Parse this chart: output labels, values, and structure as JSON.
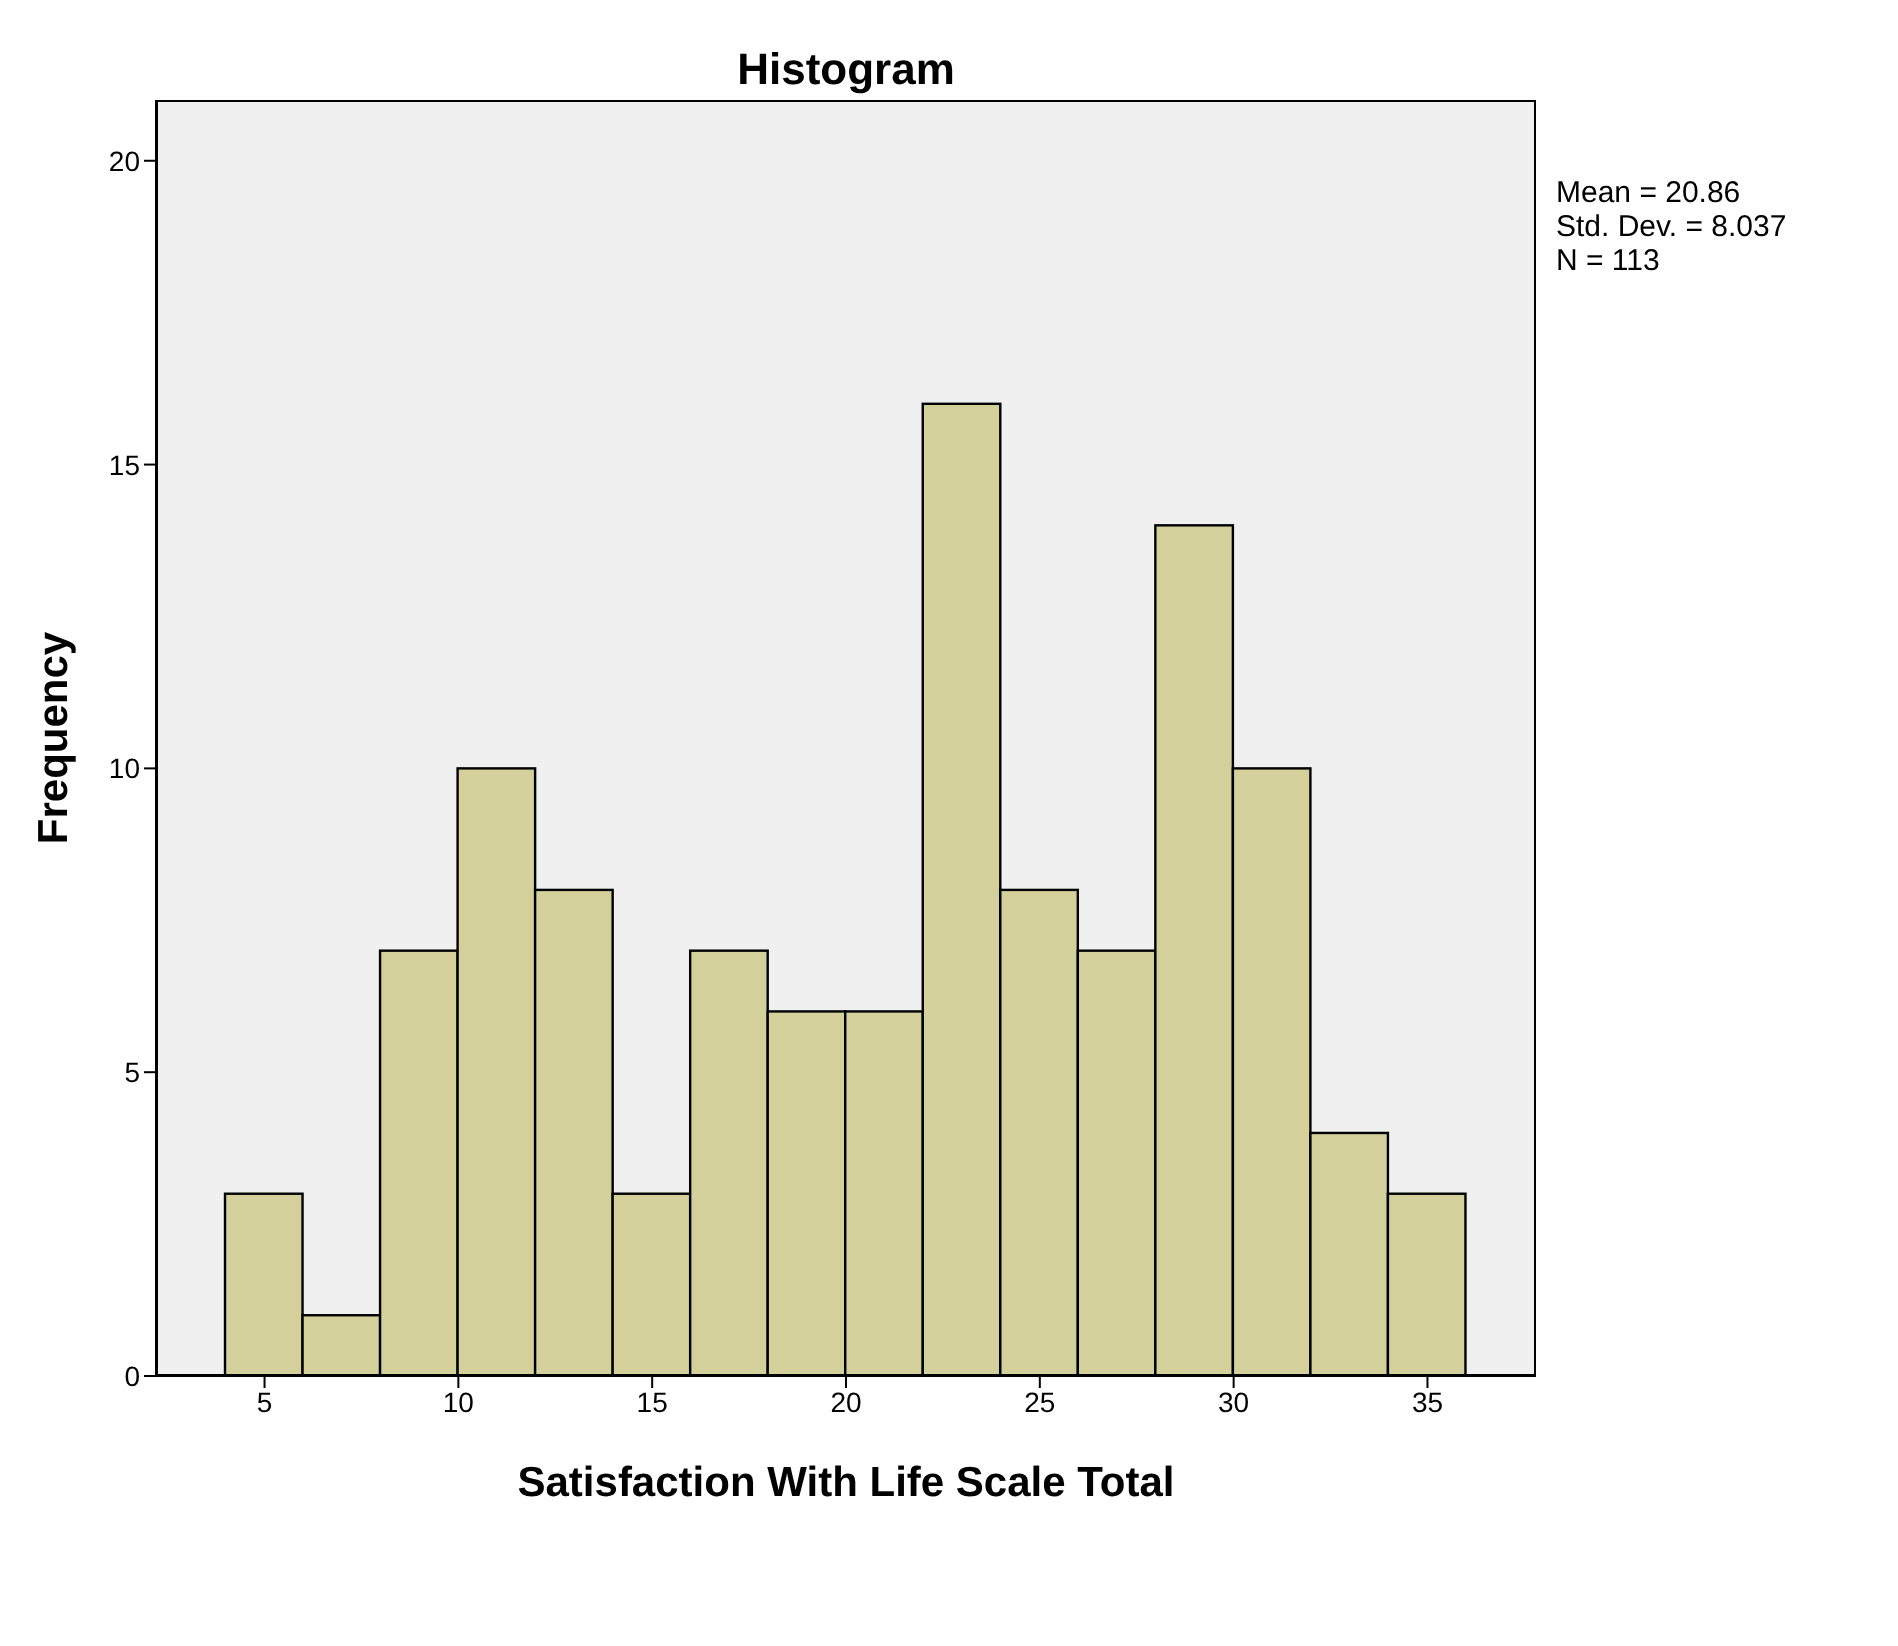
{
  "chart_data": {
    "type": "histogram",
    "title": "Histogram",
    "xlabel": "Satisfaction With Life Scale Total",
    "ylabel": "Frequency",
    "bins": [
      4,
      6,
      8,
      10,
      12,
      14,
      16,
      18,
      20,
      22,
      24,
      26,
      28,
      30,
      32,
      34,
      36
    ],
    "values": [
      3,
      1,
      7,
      10,
      8,
      3,
      7,
      6,
      6,
      16,
      8,
      7,
      14,
      10,
      4,
      3
    ],
    "color": "#d4d09c",
    "xlim": [
      2.2,
      37.8
    ],
    "xticks": [
      5,
      10,
      15,
      20,
      25,
      30,
      35
    ],
    "ylim": [
      0,
      21
    ],
    "yticks": [
      0,
      5,
      10,
      15,
      20
    ],
    "grid": false,
    "annotations": [
      "Mean = 20.86",
      "Std. Dev. = 8.037",
      "N = 113"
    ]
  }
}
